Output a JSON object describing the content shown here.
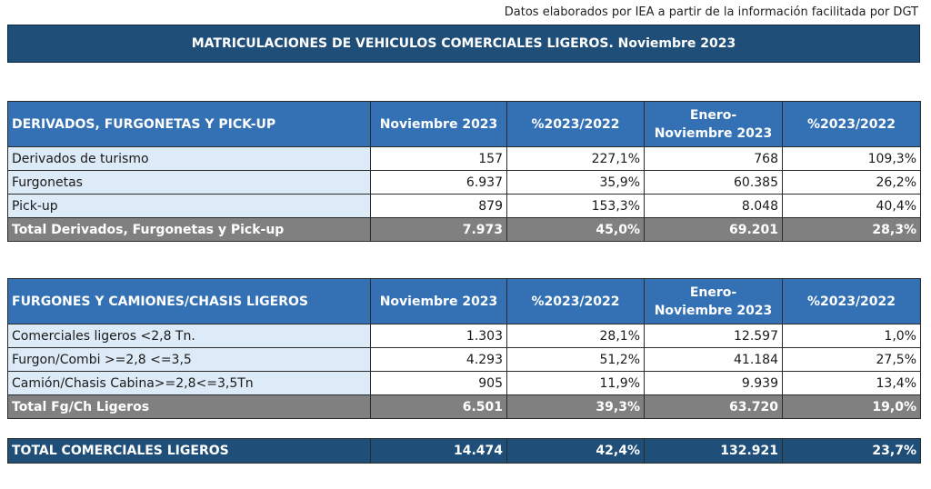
{
  "source_note": "Datos elaborados por IEA a partir de la información facilitada por DGT",
  "title": "MATRICULACIONES DE VEHICULOS COMERCIALES LIGEROS. Noviembre 2023",
  "table1": {
    "headers": [
      "DERIVADOS, FURGONETAS Y PICK-UP",
      "Noviembre 2023",
      "%2023/2022",
      "Enero-\nNoviembre 2023",
      "%2023/2022"
    ],
    "header3_line1": "Enero-",
    "header3_line2": "Noviembre 2023",
    "rows": [
      [
        "Derivados de turismo",
        "157",
        "227,1%",
        "768",
        "109,3%"
      ],
      [
        "Furgonetas",
        "6.937",
        "35,9%",
        "60.385",
        "26,2%"
      ],
      [
        "Pick-up",
        "879",
        "153,3%",
        "8.048",
        "40,4%"
      ]
    ],
    "total": [
      "Total Derivados, Furgonetas y Pick-up",
      "7.973",
      "45,0%",
      "69.201",
      "28,3%"
    ]
  },
  "table2": {
    "headers": [
      "FURGONES Y CAMIONES/CHASIS LIGEROS",
      "Noviembre 2023",
      "%2023/2022",
      "Enero-\nNoviembre 2023",
      "%2023/2022"
    ],
    "header3_line1": "Enero-",
    "header3_line2": "Noviembre 2023",
    "rows": [
      [
        "Comerciales ligeros <2,8 Tn.",
        "1.303",
        "28,1%",
        "12.597",
        "1,0%"
      ],
      [
        "Furgon/Combi >=2,8 <=3,5",
        "4.293",
        "51,2%",
        "41.184",
        "27,5%"
      ],
      [
        "Camión/Chasis Cabina>=2,8<=3,5Tn",
        "905",
        "11,9%",
        "9.939",
        "13,4%"
      ]
    ],
    "total": [
      "Total Fg/Ch Ligeros",
      "6.501",
      "39,3%",
      "63.720",
      "19,0%"
    ]
  },
  "grand_total": [
    "TOTAL COMERCIALES LIGEROS",
    "14.474",
    "42,4%",
    "132.921",
    "23,7%"
  ],
  "colors": {
    "title_bg": "#1f4e79",
    "header_bg": "#3371b4",
    "label_bg": "#ddeaf7",
    "total_bg": "#808080",
    "grand_bg": "#1f4e79"
  }
}
